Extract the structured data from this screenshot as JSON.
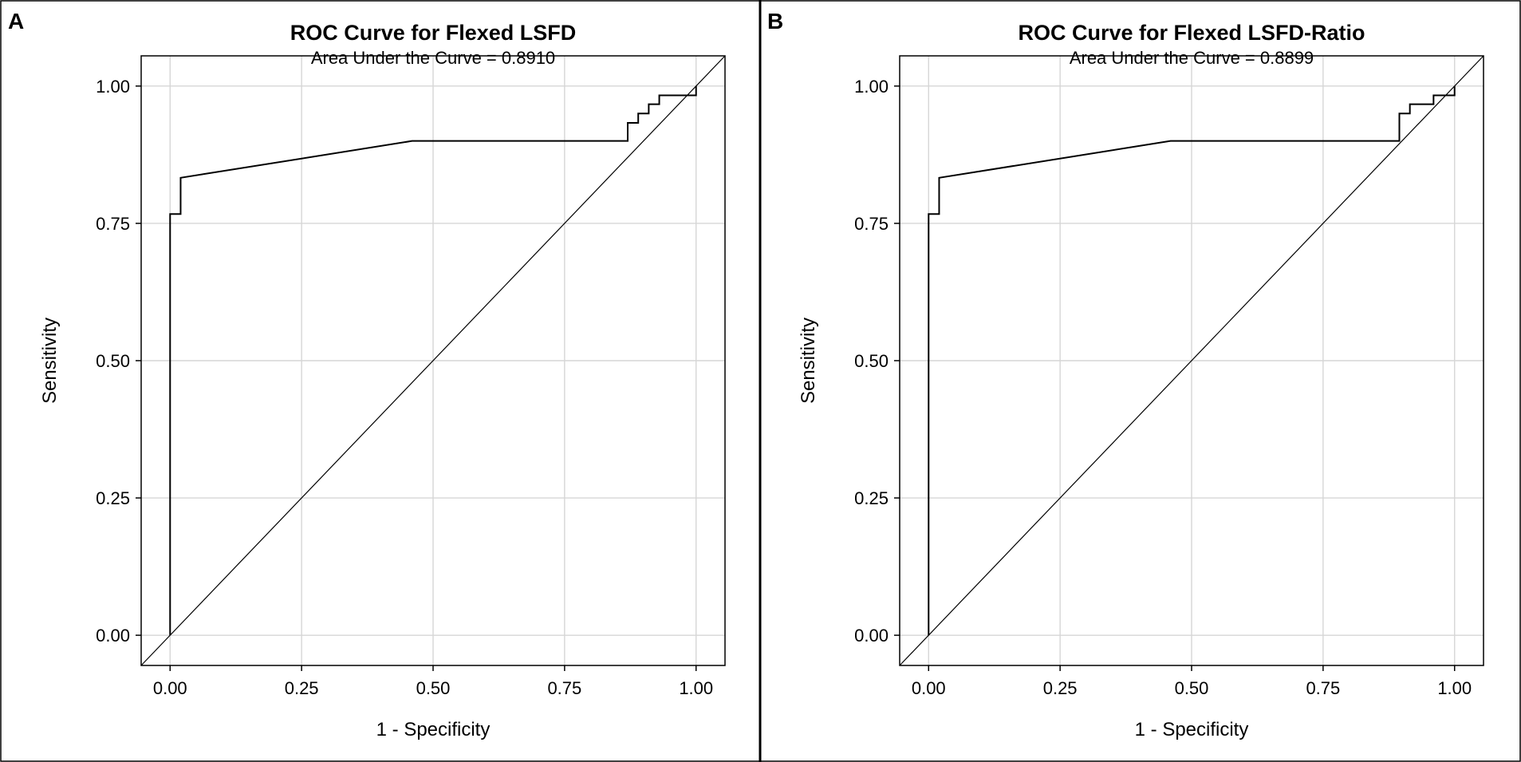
{
  "chart_data": [
    {
      "panel_label": "A",
      "type": "line",
      "title": "ROC Curve for Flexed LSFD",
      "subtitle": "Area Under the Curve = 0.8910",
      "xlabel": "1 - Specificity",
      "ylabel": "Sensitivity",
      "xlim": [
        -0.055,
        1.055
      ],
      "ylim": [
        -0.055,
        1.055
      ],
      "xticks": [
        0,
        0.25,
        0.5,
        0.75,
        1
      ],
      "yticks": [
        0,
        0.25,
        0.5,
        0.75,
        1
      ],
      "xtick_labels": [
        "0.00",
        "0.25",
        "0.50",
        "0.75",
        "1.00"
      ],
      "ytick_labels": [
        "0.00",
        "0.25",
        "0.50",
        "0.75",
        "1.00"
      ],
      "grid": true,
      "series": [
        {
          "name": "ROC",
          "x": [
            0,
            0,
            0,
            0.02,
            0.02,
            0.46,
            0.87,
            0.87,
            0.89,
            0.89,
            0.91,
            0.91,
            0.93,
            0.93,
            0.96,
            0.96,
            1.0,
            1.0
          ],
          "y": [
            0,
            0.767,
            0.767,
            0.767,
            0.833,
            0.9,
            0.9,
            0.933,
            0.933,
            0.95,
            0.95,
            0.967,
            0.967,
            0.983,
            0.983,
            0.983,
            0.983,
            1.0
          ]
        },
        {
          "name": "Reference",
          "x": [
            -0.055,
            1.055
          ],
          "y": [
            -0.055,
            1.055
          ]
        }
      ]
    },
    {
      "panel_label": "B",
      "type": "line",
      "title": "ROC Curve for Flexed LSFD-Ratio",
      "subtitle": "Area Under the Curve = 0.8899",
      "xlabel": "1 - Specificity",
      "ylabel": "Sensitivity",
      "xlim": [
        -0.055,
        1.055
      ],
      "ylim": [
        -0.055,
        1.055
      ],
      "xticks": [
        0,
        0.25,
        0.5,
        0.75,
        1
      ],
      "yticks": [
        0,
        0.25,
        0.5,
        0.75,
        1
      ],
      "xtick_labels": [
        "0.00",
        "0.25",
        "0.50",
        "0.75",
        "1.00"
      ],
      "ytick_labels": [
        "0.00",
        "0.25",
        "0.50",
        "0.75",
        "1.00"
      ],
      "grid": true,
      "series": [
        {
          "name": "ROC",
          "x": [
            0,
            0,
            0.02,
            0.02,
            0.46,
            0.895,
            0.895,
            0.915,
            0.915,
            0.96,
            0.96,
            0.98,
            0.98,
            1.0,
            1.0
          ],
          "y": [
            0,
            0.767,
            0.767,
            0.833,
            0.9,
            0.9,
            0.95,
            0.95,
            0.967,
            0.967,
            0.983,
            0.983,
            0.983,
            0.983,
            1.0
          ]
        },
        {
          "name": "Reference",
          "x": [
            -0.055,
            1.055
          ],
          "y": [
            -0.055,
            1.055
          ]
        }
      ]
    }
  ]
}
